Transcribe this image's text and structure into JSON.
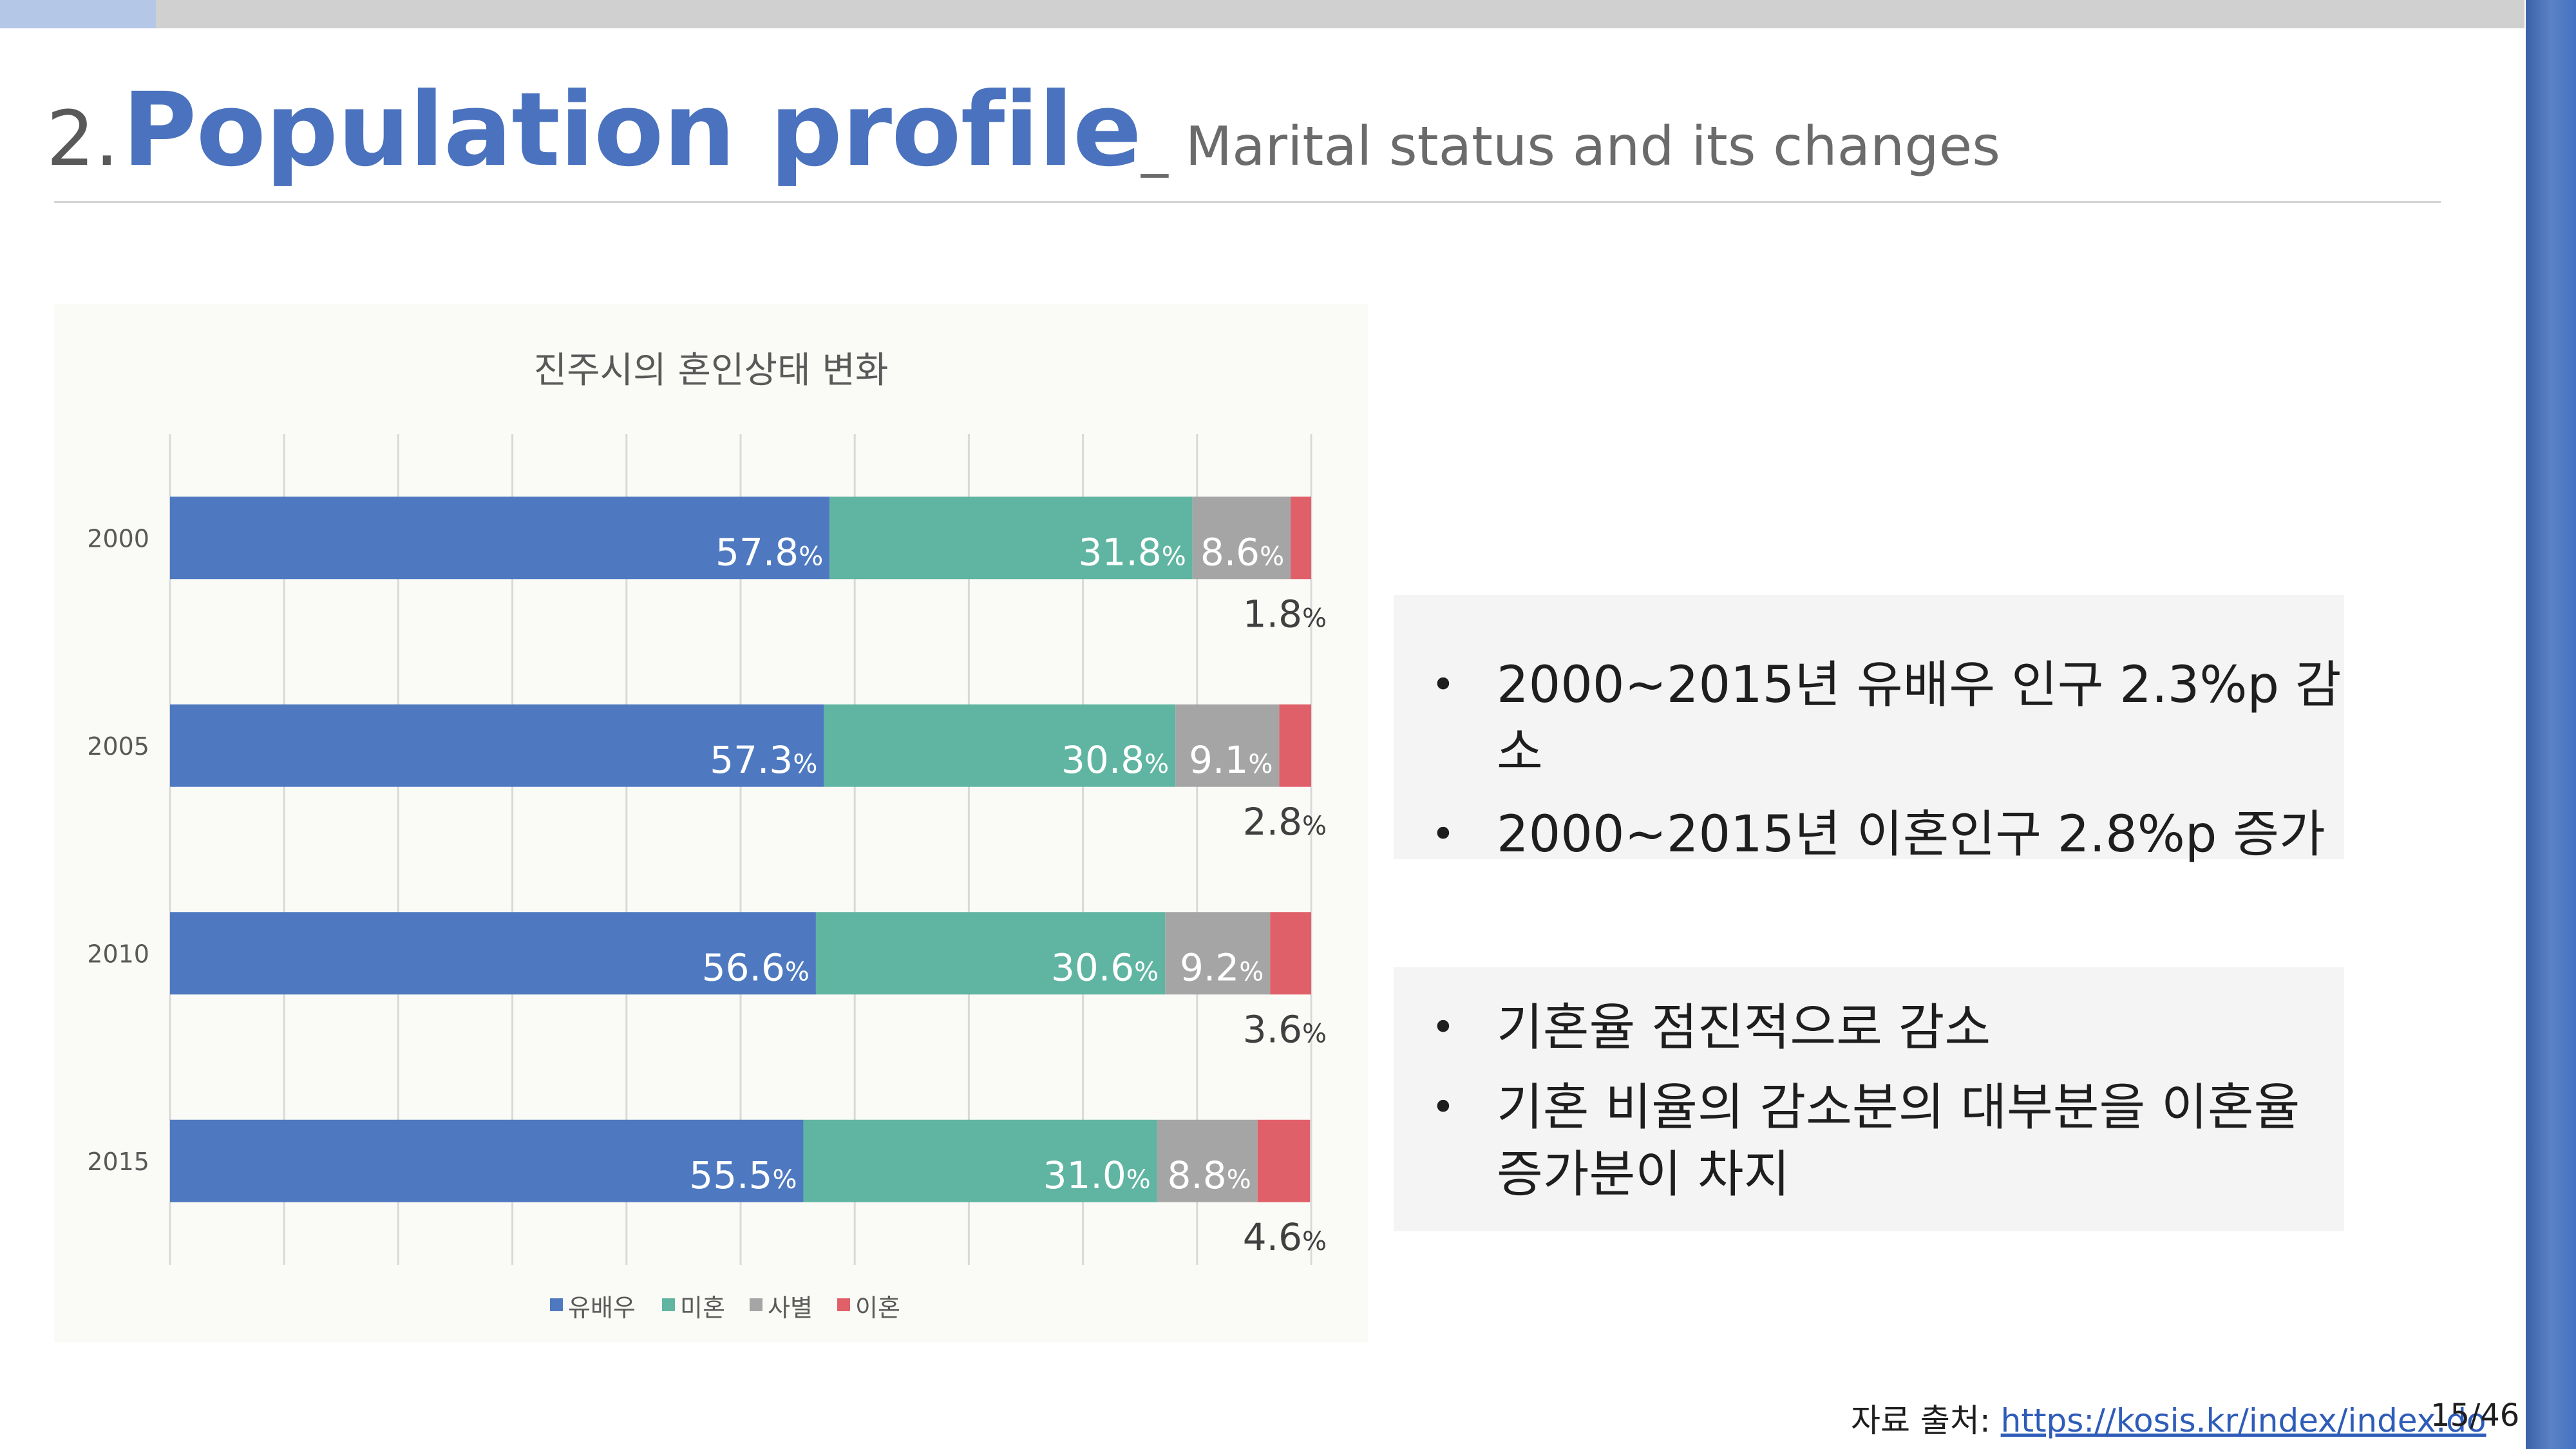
{
  "header": {
    "number": "2.",
    "title": "Population profile",
    "subtitle": "_ Marital status and its changes"
  },
  "chart_data": {
    "type": "bar",
    "orientation": "horizontal",
    "stacked": "percent",
    "title": "진주시의 혼인상태 변화",
    "categories": [
      "2000",
      "2005",
      "2010",
      "2015"
    ],
    "series": [
      {
        "name": "유배우",
        "color": "#4e79c0",
        "values": [
          57.8,
          57.3,
          56.6,
          55.5
        ]
      },
      {
        "name": "미혼",
        "color": "#5fb5a1",
        "values": [
          31.8,
          30.8,
          30.6,
          31.0
        ]
      },
      {
        "name": "사별",
        "color": "#a5a5a5",
        "values": [
          8.6,
          9.1,
          9.2,
          8.8
        ]
      },
      {
        "name": "이혼",
        "color": "#e0606a",
        "values": [
          1.8,
          2.8,
          3.6,
          4.6
        ]
      }
    ],
    "value_suffix": "%",
    "xlim": [
      0,
      100
    ],
    "grid": true,
    "legend": "bottom"
  },
  "notes": {
    "box1": [
      "2000~2015년 유배우 인구 2.3%p 감소",
      "2000~2015년 이혼인구 2.8%p 증가"
    ],
    "box2": [
      "기혼율 점진적으로 감소",
      "기혼 비율의 감소분의 대부분을 이혼율 증가분이 차지"
    ],
    "bullet": "•"
  },
  "footer": {
    "source_label": "자료 출처: ",
    "source_link": "https://kosis.kr/index/index.do",
    "page": "15/46"
  }
}
